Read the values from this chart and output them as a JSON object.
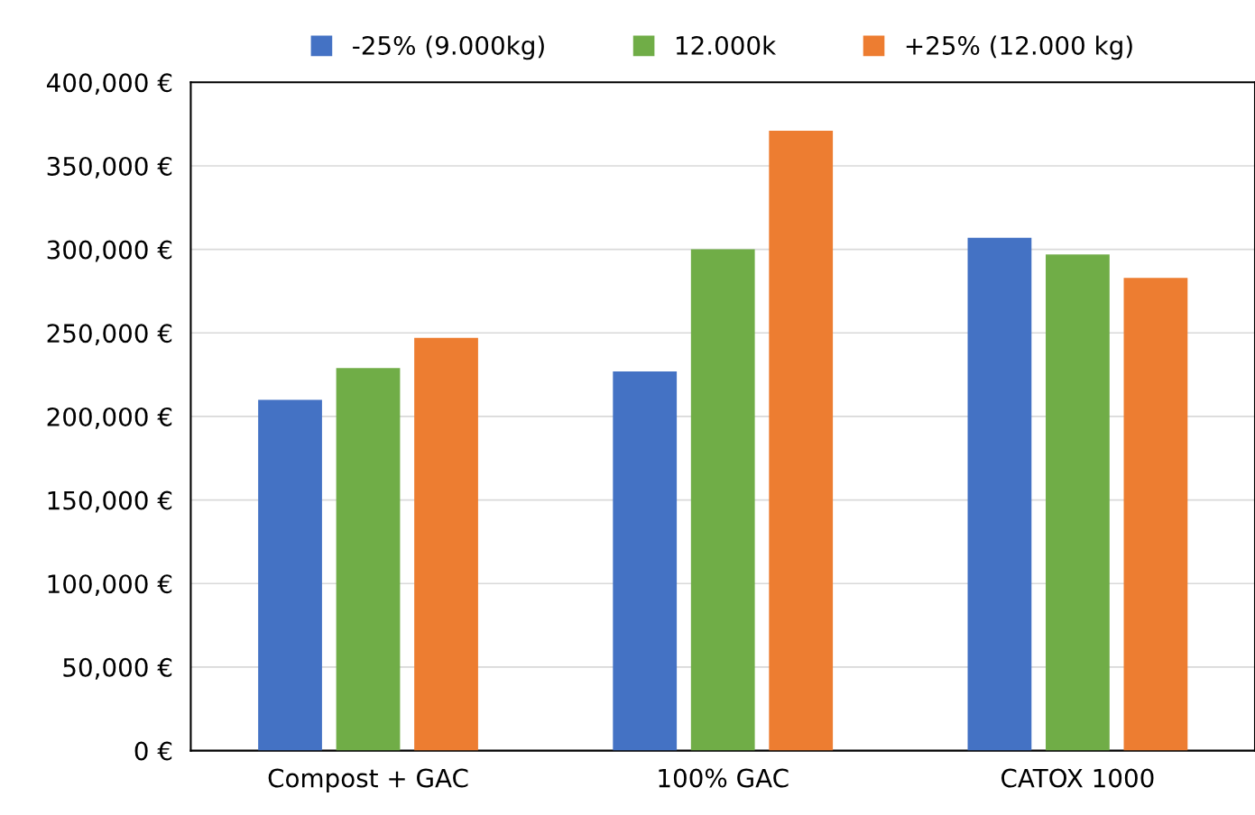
{
  "chart_data": {
    "type": "bar",
    "categories": [
      "Compost + GAC",
      "100% GAC",
      "CATOX 1000"
    ],
    "series": [
      {
        "name": "-25% (9.000kg)",
        "color": "#4472c4",
        "values": [
          210000,
          227000,
          307000
        ]
      },
      {
        "name": "12.000k",
        "color": "#70ad47",
        "values": [
          229000,
          300000,
          297000
        ]
      },
      {
        "name": "+25% (12.000 kg)",
        "color": "#ed7d31",
        "values": [
          247000,
          371000,
          283000
        ]
      }
    ],
    "ylim": [
      0,
      400000
    ],
    "yticks": [
      {
        "value": 0,
        "label": "0 €"
      },
      {
        "value": 50000,
        "label": "50,000 €"
      },
      {
        "value": 100000,
        "label": "100,000 €"
      },
      {
        "value": 150000,
        "label": "150,000 €"
      },
      {
        "value": 200000,
        "label": "200,000 €"
      },
      {
        "value": 250000,
        "label": "250,000 €"
      },
      {
        "value": 300000,
        "label": "300,000 €"
      },
      {
        "value": 350000,
        "label": "350,000 €"
      },
      {
        "value": 400000,
        "label": "400,000 €"
      }
    ],
    "grid": "y",
    "legend": "top"
  }
}
